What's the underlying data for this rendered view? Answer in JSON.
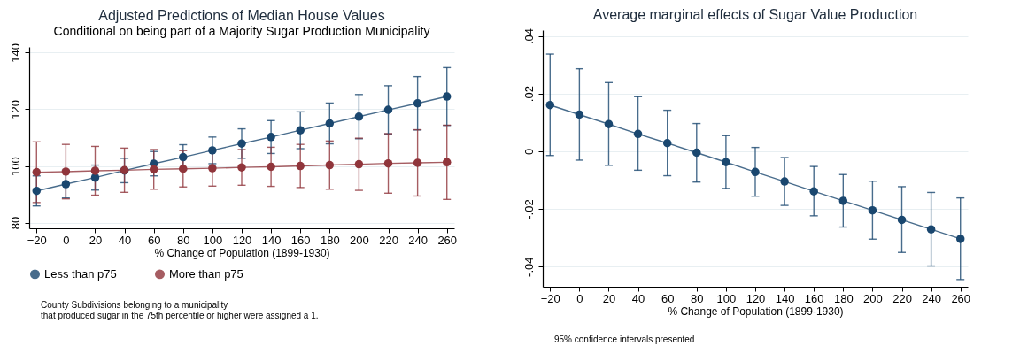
{
  "chart_data": [
    {
      "type": "line",
      "title": "Adjusted Predictions of Median House Values",
      "subtitle": "Conditional on being part of a Majority Sugar Production Municipality",
      "xlabel": "% Change of Population (1899-1930)",
      "x": [
        -20,
        0,
        20,
        40,
        60,
        80,
        100,
        120,
        140,
        160,
        180,
        200,
        220,
        240,
        260
      ],
      "xlim": [
        -25,
        265
      ],
      "xticks": [
        -20,
        0,
        20,
        40,
        60,
        80,
        100,
        120,
        140,
        160,
        180,
        200,
        220,
        240,
        260
      ],
      "ylim": [
        78,
        142
      ],
      "yticks": [
        80,
        100,
        120,
        140
      ],
      "grid": "y",
      "legend": "bottom",
      "marker": "circle",
      "annotations": [
        "County Subdivisions belonging to a municipality\nthat produced sugar in the 75th percentile or higher were assigned a 1."
      ],
      "series": [
        {
          "name": "Less than p75",
          "color": "#1a476f",
          "values": [
            91.2,
            93.6,
            95.9,
            98.4,
            100.8,
            103.1,
            105.5,
            107.9,
            110.2,
            112.6,
            115.0,
            117.4,
            119.8,
            122.1,
            124.5
          ],
          "errors": [
            5.3,
            4.9,
            4.4,
            4.3,
            4.3,
            4.4,
            4.7,
            5.2,
            5.8,
            6.5,
            7.2,
            7.8,
            8.5,
            9.4,
            10.2
          ]
        },
        {
          "name": "More than p75",
          "color": "#90353b",
          "values": [
            97.8,
            98.0,
            98.3,
            98.5,
            98.8,
            99.0,
            99.2,
            99.5,
            99.7,
            100.0,
            100.3,
            100.6,
            100.9,
            101.1,
            101.3
          ],
          "errors": [
            10.7,
            9.6,
            8.6,
            7.8,
            7.0,
            6.4,
            6.3,
            6.3,
            6.9,
            7.6,
            8.5,
            9.2,
            10.5,
            11.7,
            13.1
          ]
        }
      ]
    },
    {
      "type": "line",
      "title": "Average marginal effects of Sugar Value Production",
      "xlabel": "% Change of Population (1899-1930)",
      "x": [
        -20,
        0,
        20,
        40,
        60,
        80,
        100,
        120,
        140,
        160,
        180,
        200,
        220,
        240,
        260
      ],
      "xlim": [
        -25,
        265
      ],
      "xticks": [
        -20,
        0,
        20,
        40,
        60,
        80,
        100,
        120,
        140,
        160,
        180,
        200,
        220,
        240,
        260
      ],
      "ylim": [
        -0.047,
        0.042
      ],
      "yticks": [
        {
          "value": 0.04,
          "label": ".04"
        },
        {
          "value": 0.02,
          "label": ".02"
        },
        {
          "value": 0,
          "label": "0"
        },
        {
          "value": -0.02,
          "label": "-.02"
        },
        {
          "value": -0.04,
          "label": "-.04"
        }
      ],
      "grid": "y",
      "marker": "circle",
      "annotations": [
        "95% confidence intervals presented"
      ],
      "series": [
        {
          "color": "#1a476f",
          "values": [
            0.016,
            0.0127,
            0.0094,
            0.006,
            0.0028,
            -0.0005,
            -0.0038,
            -0.0072,
            -0.0105,
            -0.0139,
            -0.0172,
            -0.0205,
            -0.0238,
            -0.0271,
            -0.0304
          ],
          "errors": [
            [
              -0.0015,
              0.0337
            ],
            [
              -0.0031,
              0.0286
            ],
            [
              -0.0049,
              0.0238
            ],
            [
              -0.0066,
              0.0189
            ],
            [
              -0.0085,
              0.0142
            ],
            [
              -0.0107,
              0.0096
            ],
            [
              -0.0129,
              0.0054
            ],
            [
              -0.0156,
              0.0013
            ],
            [
              -0.0188,
              -0.0022
            ],
            [
              -0.0224,
              -0.0053
            ],
            [
              -0.0263,
              -0.0081
            ],
            [
              -0.0305,
              -0.0104
            ],
            [
              -0.0351,
              -0.0123
            ],
            [
              -0.0398,
              -0.0143
            ],
            [
              -0.0445,
              -0.0162
            ]
          ]
        }
      ]
    }
  ]
}
